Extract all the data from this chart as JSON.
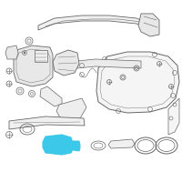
{
  "background_color": "#ffffff",
  "line_color": "#666666",
  "highlight_color": "#3cc8e8",
  "fig_width": 2.0,
  "fig_height": 2.0,
  "dpi": 100
}
